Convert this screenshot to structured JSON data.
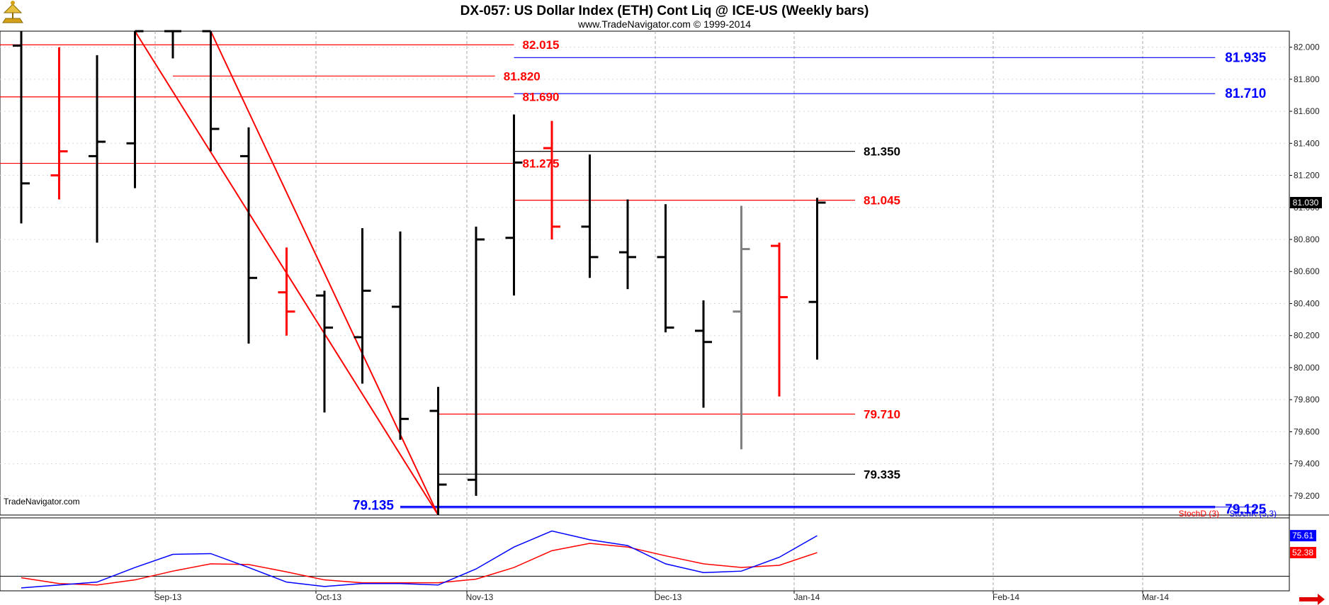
{
  "header": {
    "title": "DX-057:  US Dollar Index (ETH) Cont Liq @ ICE-US  (Weekly bars)",
    "subtitle": "www.TradeNavigator.com © 1999-2014"
  },
  "watermark": "TradeNavigator.com",
  "colors": {
    "up": "#000000",
    "down": "#ff0000",
    "neutral": "#808080",
    "stoch_d": "#ff0000",
    "stoch_k": "#0000ff",
    "level_red": "#ff0000",
    "level_blue": "#0000ff",
    "level_black": "#000000"
  },
  "chart_data": [
    {
      "type": "ohlc",
      "title": "DX-057:  US Dollar Index (ETH) Cont Liq @ ICE-US  (Weekly bars)",
      "xlabel": "",
      "ylabel": "",
      "x_tick_labels": [
        "Sep-13",
        "Oct-13",
        "Nov-13",
        "Dec-13",
        "Jan-14",
        "Feb-14",
        "Mar-14"
      ],
      "y_ticks": [
        "79.200",
        "79.400",
        "79.600",
        "79.800",
        "80.000",
        "80.200",
        "80.400",
        "80.600",
        "80.800",
        "81.000",
        "81.200",
        "81.400",
        "81.600",
        "81.800",
        "82.000"
      ],
      "ylim": [
        79.08,
        82.1
      ],
      "grid": true,
      "last_price": "81.030",
      "bars": [
        {
          "o": 82.01,
          "h": 82.1,
          "l": 80.9,
          "c": 81.15,
          "color": "up"
        },
        {
          "o": 81.2,
          "h": 82.0,
          "l": 81.05,
          "c": 81.35,
          "color": "down"
        },
        {
          "o": 81.32,
          "h": 81.95,
          "l": 80.78,
          "c": 81.41,
          "color": "up"
        },
        {
          "o": 81.4,
          "h": 82.1,
          "l": 81.12,
          "c": 82.1,
          "color": "up"
        },
        {
          "o": 82.1,
          "h": 82.1,
          "l": 81.93,
          "c": 82.1,
          "color": "up"
        },
        {
          "o": 82.1,
          "h": 82.1,
          "l": 81.35,
          "c": 81.49,
          "color": "up"
        },
        {
          "o": 81.32,
          "h": 81.5,
          "l": 80.15,
          "c": 80.56,
          "color": "up"
        },
        {
          "o": 80.47,
          "h": 80.75,
          "l": 80.2,
          "c": 80.35,
          "color": "down"
        },
        {
          "o": 80.45,
          "h": 80.48,
          "l": 79.72,
          "c": 80.25,
          "color": "up"
        },
        {
          "o": 80.19,
          "h": 80.87,
          "l": 79.9,
          "c": 80.48,
          "color": "up"
        },
        {
          "o": 80.38,
          "h": 80.85,
          "l": 79.55,
          "c": 79.68,
          "color": "up"
        },
        {
          "o": 79.73,
          "h": 79.88,
          "l": 79.08,
          "c": 79.27,
          "color": "up"
        },
        {
          "o": 79.3,
          "h": 80.88,
          "l": 79.2,
          "c": 80.8,
          "color": "up"
        },
        {
          "o": 80.81,
          "h": 81.58,
          "l": 80.45,
          "c": 81.28,
          "color": "up"
        },
        {
          "o": 81.37,
          "h": 81.54,
          "l": 80.8,
          "c": 80.88,
          "color": "down"
        },
        {
          "o": 80.88,
          "h": 81.33,
          "l": 80.56,
          "c": 80.69,
          "color": "up"
        },
        {
          "o": 80.72,
          "h": 81.05,
          "l": 80.49,
          "c": 80.69,
          "color": "up"
        },
        {
          "o": 80.69,
          "h": 81.02,
          "l": 80.22,
          "c": 80.25,
          "color": "up"
        },
        {
          "o": 80.23,
          "h": 80.42,
          "l": 79.75,
          "c": 80.16,
          "color": "up"
        },
        {
          "o": 80.35,
          "h": 81.01,
          "l": 79.49,
          "c": 80.74,
          "color": "neutral"
        },
        {
          "o": 80.76,
          "h": 80.78,
          "l": 79.82,
          "c": 80.44,
          "color": "down"
        },
        {
          "o": 80.41,
          "h": 81.06,
          "l": 80.05,
          "c": 81.03,
          "color": "up"
        }
      ],
      "trendlines": [
        {
          "from_bar": 3,
          "from_value": 82.1,
          "to_bar": 11,
          "to_value": 79.08
        },
        {
          "from_bar": 5,
          "from_value": 82.1,
          "to_bar": 11,
          "to_value": 79.08
        }
      ],
      "levels": [
        {
          "label": "82.015",
          "value": 82.015,
          "color": "level_red",
          "from_bar": -1,
          "to_bar": 13,
          "size": "md"
        },
        {
          "label": "81.935",
          "value": 81.935,
          "color": "level_blue",
          "from_bar": 13,
          "to_bar": 31.5,
          "size": "lg"
        },
        {
          "label": "81.820",
          "value": 81.82,
          "color": "level_red",
          "from_bar": 4,
          "to_bar": 12.5,
          "size": "md"
        },
        {
          "label": "81.710",
          "value": 81.71,
          "color": "level_blue",
          "from_bar": 13,
          "to_bar": 31.5,
          "size": "lg"
        },
        {
          "label": "81.690",
          "value": 81.69,
          "color": "level_red",
          "from_bar": -1,
          "to_bar": 13,
          "size": "md"
        },
        {
          "label": "81.350",
          "value": 81.35,
          "color": "level_black",
          "from_bar": 13,
          "to_bar": 22,
          "size": "md"
        },
        {
          "label": "81.275",
          "value": 81.275,
          "color": "level_red",
          "from_bar": -1,
          "to_bar": 13,
          "size": "md"
        },
        {
          "label": "81.045",
          "value": 81.045,
          "color": "level_red",
          "from_bar": 13,
          "to_bar": 22,
          "size": "md"
        },
        {
          "label": "79.710",
          "value": 79.71,
          "color": "level_red",
          "from_bar": 11,
          "to_bar": 22,
          "size": "md"
        },
        {
          "label": "79.335",
          "value": 79.335,
          "color": "level_black",
          "from_bar": 11,
          "to_bar": 22,
          "size": "md"
        },
        {
          "label": "79.135",
          "value": 79.135,
          "color": "level_blue",
          "from_bar": 10,
          "to_bar": 31.5,
          "size": "lg"
        },
        {
          "label": "79.125",
          "value": 79.125,
          "color": "level_blue",
          "from_bar": 10,
          "to_bar": 31.5,
          "size": "lg"
        }
      ]
    },
    {
      "type": "line",
      "title": "",
      "ylim": [
        0,
        100
      ],
      "legend": [
        "StochD (3)",
        "StochK (5,3)"
      ],
      "legend_position": "top-right",
      "series": [
        {
          "name": "StochD (3)",
          "color": "stoch_d",
          "last_label": "52.38",
          "values": [
            18,
            10,
            8,
            15,
            27,
            37,
            36,
            26,
            15,
            11,
            11,
            11,
            16,
            32,
            55,
            65,
            60,
            48,
            37,
            32,
            35,
            52.38
          ]
        },
        {
          "name": "StochK (5,3)",
          "color": "stoch_k",
          "last_label": "75.61",
          "values": [
            4,
            8,
            12,
            32,
            50,
            51,
            32,
            12,
            6,
            10,
            10,
            8,
            30,
            60,
            82,
            70,
            62,
            37,
            25,
            27,
            46,
            75.61
          ]
        }
      ]
    }
  ]
}
